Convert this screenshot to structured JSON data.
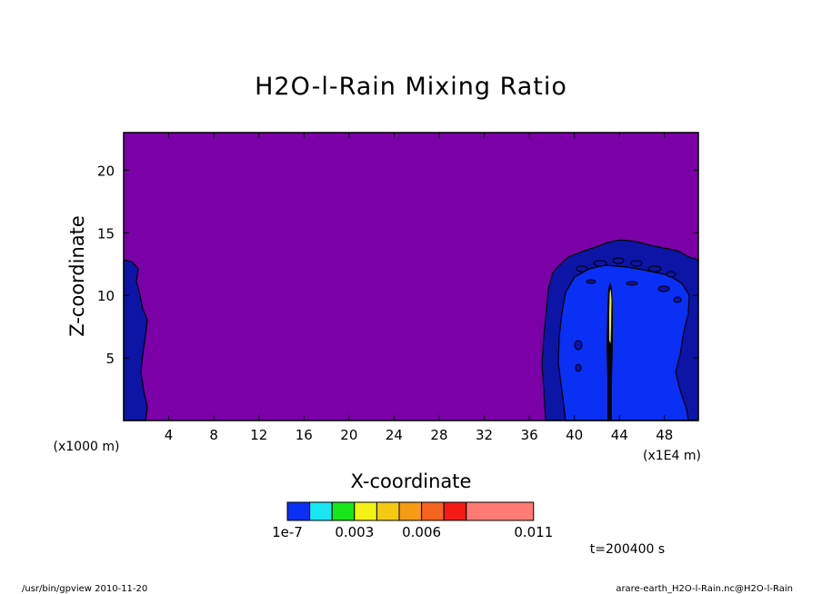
{
  "chart_data": {
    "type": "heatmap",
    "title": "H2O-l-Rain Mixing Ratio",
    "xlabel": "X-coordinate",
    "ylabel": "Z-coordinate",
    "x_unit": "(x1E4 m)",
    "y_unit": "(x1000 m)",
    "xlim": [
      0,
      51
    ],
    "ylim": [
      0,
      23
    ],
    "x_ticks": [
      4,
      8,
      12,
      16,
      20,
      24,
      28,
      32,
      36,
      40,
      44,
      48
    ],
    "y_ticks": [
      5,
      10,
      15,
      20
    ],
    "background_value_color": "#7b00a8",
    "colorbar": {
      "colors": [
        "#0a2ff5",
        "#19e6f0",
        "#19e61a",
        "#f2f214",
        "#f5c814",
        "#f59b14",
        "#f5641e",
        "#f51a14",
        "#ff7b73"
      ],
      "tick_labels": [
        "1e-7",
        "0.003",
        "0.006",
        "0.011"
      ]
    },
    "time_label": "t=200400 s",
    "footer_left": "/usr/bin/gpview  2010-11-20",
    "footer_right": "arare-earth_H2O-l-Rain.nc@H2O-l-Rain"
  }
}
